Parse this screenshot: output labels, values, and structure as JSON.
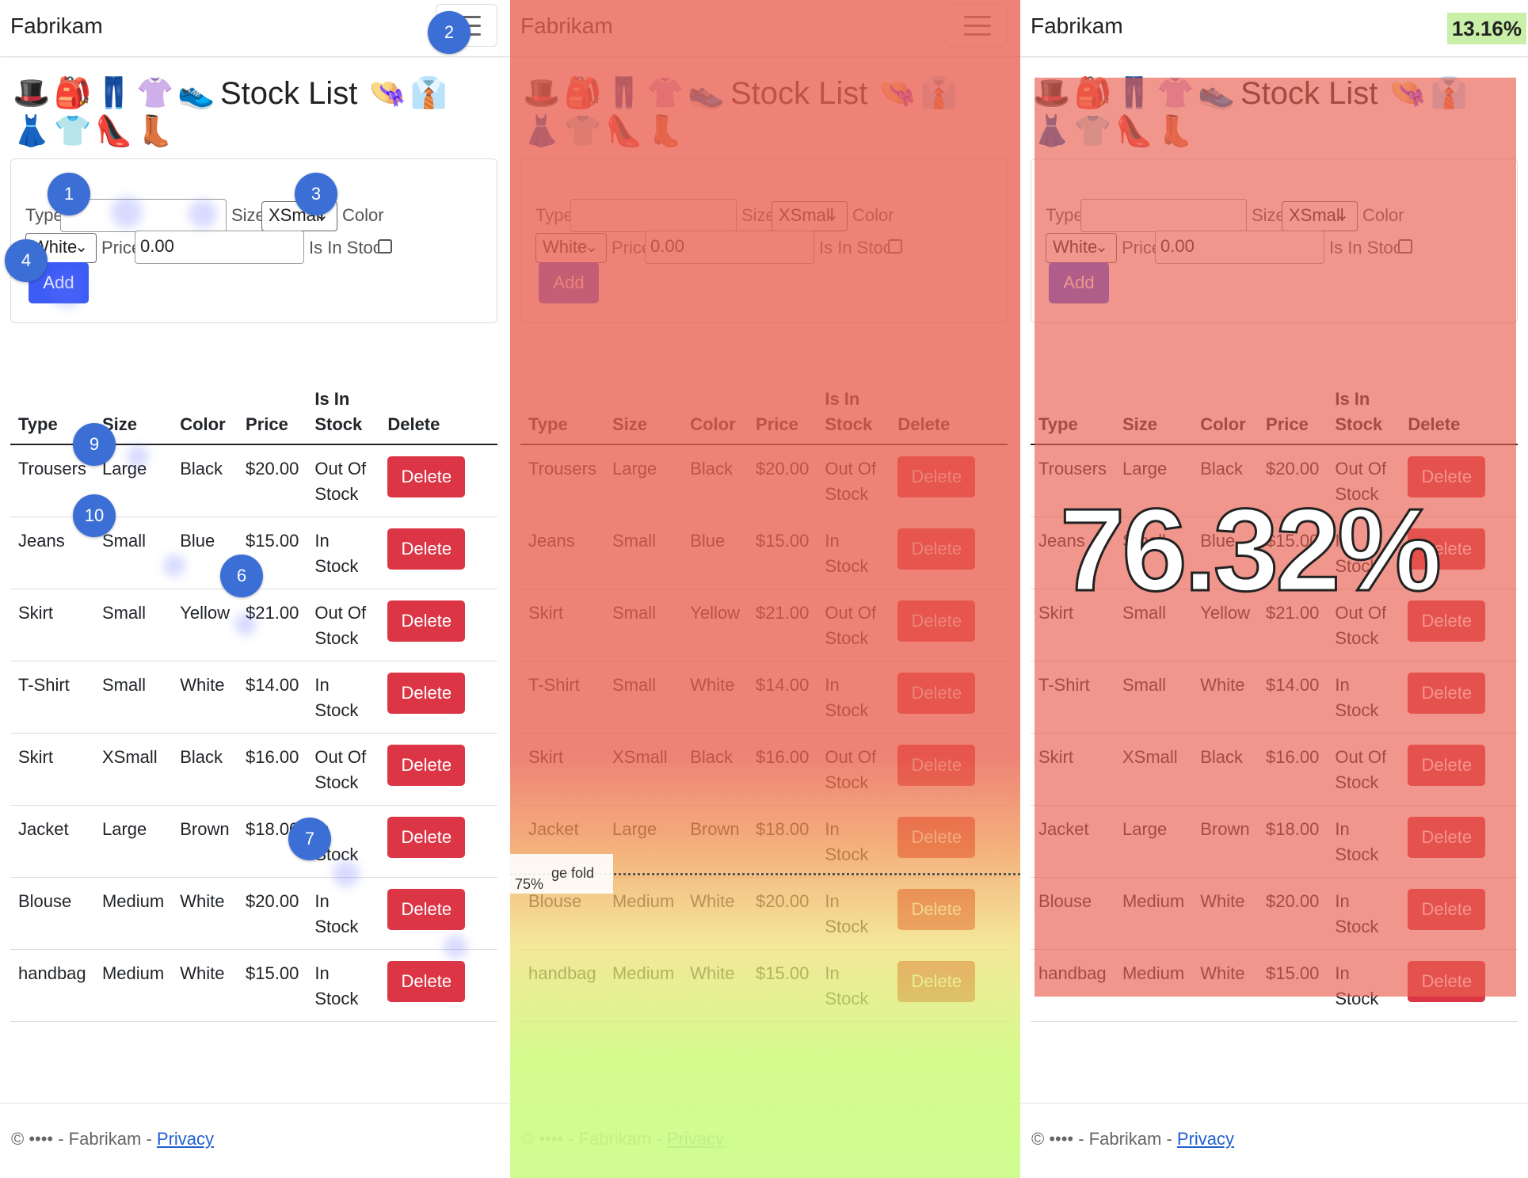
{
  "brand": "Fabrikam",
  "title": "Stock List",
  "emojis": [
    "🎩",
    "🎒",
    "👖",
    "👚",
    "👟",
    "👒",
    "👔",
    "👗",
    "👕",
    "👠",
    "👢"
  ],
  "form": {
    "type_label": "Type",
    "type_value": "",
    "size_label": "Size",
    "size_value": "XSmall",
    "color_label": "Color",
    "color_value": "White",
    "price_label": "Price",
    "price_value": "0.00",
    "instock_label": "Is In Stock",
    "add_label": "Add"
  },
  "table": {
    "headers": [
      "Type",
      "Size",
      "Color",
      "Price",
      "Is In Stock",
      "Delete"
    ],
    "delete_label": "Delete",
    "rows": [
      {
        "type": "Trousers",
        "size": "Large",
        "color": "Black",
        "price": "$20.00",
        "stock": "Out Of Stock"
      },
      {
        "type": "Jeans",
        "size": "Small",
        "color": "Blue",
        "price": "$15.00",
        "stock": "In Stock"
      },
      {
        "type": "Skirt",
        "size": "Small",
        "color": "Yellow",
        "price": "$21.00",
        "stock": "Out Of Stock"
      },
      {
        "type": "T-Shirt",
        "size": "Small",
        "color": "White",
        "price": "$14.00",
        "stock": "In Stock"
      },
      {
        "type": "Skirt",
        "size": "XSmall",
        "color": "Black",
        "price": "$16.00",
        "stock": "Out Of Stock"
      },
      {
        "type": "Jacket",
        "size": "Large",
        "color": "Brown",
        "price": "$18.00",
        "stock": "In Stock"
      },
      {
        "type": "Blouse",
        "size": "Medium",
        "color": "White",
        "price": "$20.00",
        "stock": "In Stock"
      },
      {
        "type": "handbag",
        "size": "Medium",
        "color": "White",
        "price": "$15.00",
        "stock": "In Stock"
      }
    ]
  },
  "footer": {
    "text": "© •••• - Fabrikam - ",
    "privacy": "Privacy"
  },
  "markers": [
    "1",
    "2",
    "3",
    "4",
    "6",
    "7",
    "9",
    "10"
  ],
  "heatmap": {
    "fold_percent": "75%",
    "fold_label": "ge fold"
  },
  "aoi": {
    "big_percent": "76.32%",
    "small_percent": "13.16%"
  },
  "colors": {
    "heat_red": "#e95f50",
    "heat_green": "#cdfc8c",
    "add_button": "#3c5cf5",
    "delete_button": "#dc3545",
    "marker": "#3b6fd6"
  }
}
